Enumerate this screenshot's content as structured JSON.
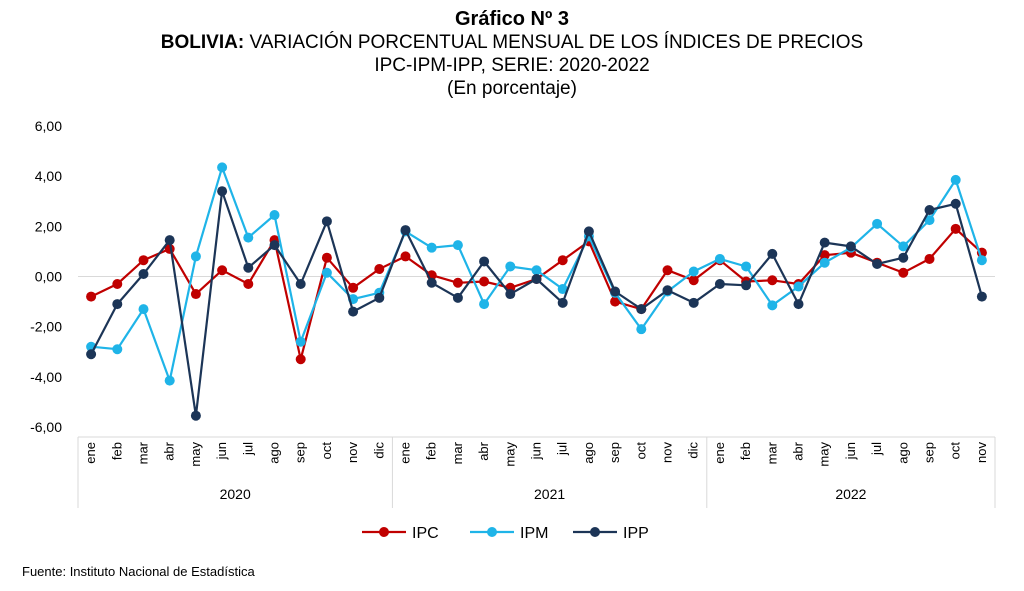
{
  "header": {
    "number": "Gráfico Nº 3",
    "country": "BOLIVIA:",
    "title_rest": " VARIACIÓN PORCENTUAL MENSUAL DE LOS ÍNDICES DE PRECIOS",
    "subtitle": "IPC-IPM-IPP, SERIE: 2020-2022",
    "unit": "(En porcentaje)"
  },
  "footer": {
    "source": "Fuente: Instituto Nacional de Estadística"
  },
  "chart_data": {
    "type": "line",
    "ylim": [
      -6,
      6
    ],
    "yticks": [
      "6,00",
      "4,00",
      "2,00",
      "0,00",
      "-2,00",
      "-4,00",
      "-6,00"
    ],
    "grid": false,
    "legend_position": "bottom",
    "years": [
      {
        "label": "2020",
        "count": 12
      },
      {
        "label": "2021",
        "count": 12
      },
      {
        "label": "2022",
        "count": 11
      }
    ],
    "categories": [
      "ene",
      "feb",
      "mar",
      "abr",
      "may",
      "jun",
      "jul",
      "ago",
      "sep",
      "oct",
      "nov",
      "dic",
      "ene",
      "feb",
      "mar",
      "abr",
      "may",
      "jun",
      "jul",
      "ago",
      "sep",
      "oct",
      "nov",
      "dic",
      "ene",
      "feb",
      "mar",
      "abr",
      "may",
      "jun",
      "jul",
      "ago",
      "sep",
      "oct",
      "nov"
    ],
    "series": [
      {
        "name": "IPC",
        "color": "#c00000",
        "values": [
          -0.8,
          -0.3,
          0.65,
          1.1,
          -0.7,
          0.25,
          -0.3,
          1.45,
          -3.3,
          0.75,
          -0.45,
          0.3,
          0.8,
          0.05,
          -0.25,
          -0.2,
          -0.45,
          -0.1,
          0.65,
          1.4,
          -1.0,
          -1.3,
          0.25,
          -0.15,
          0.65,
          -0.2,
          -0.15,
          -0.3,
          0.85,
          0.95,
          0.55,
          0.15,
          0.7,
          1.9,
          0.95
        ]
      },
      {
        "name": "IPM",
        "color": "#1fb4e8",
        "values": [
          -2.8,
          -2.9,
          -1.3,
          -4.15,
          0.8,
          4.35,
          1.55,
          2.45,
          -2.6,
          0.15,
          -0.9,
          -0.65,
          1.8,
          1.15,
          1.25,
          -1.1,
          0.4,
          0.25,
          -0.5,
          1.6,
          -0.65,
          -2.1,
          -0.6,
          0.2,
          0.7,
          0.4,
          -1.15,
          -0.4,
          0.55,
          1.15,
          2.1,
          1.2,
          2.25,
          3.85,
          0.65
        ]
      },
      {
        "name": "IPP",
        "color": "#1c3557",
        "values": [
          -3.1,
          -1.1,
          0.1,
          1.45,
          -5.55,
          3.4,
          0.35,
          1.25,
          -0.3,
          2.2,
          -1.4,
          -0.85,
          1.85,
          -0.25,
          -0.85,
          0.6,
          -0.7,
          -0.1,
          -1.05,
          1.8,
          -0.6,
          -1.3,
          -0.55,
          -1.05,
          -0.3,
          -0.35,
          0.9,
          -1.1,
          1.35,
          1.2,
          0.5,
          0.75,
          2.65,
          2.9,
          -0.8
        ]
      }
    ]
  }
}
